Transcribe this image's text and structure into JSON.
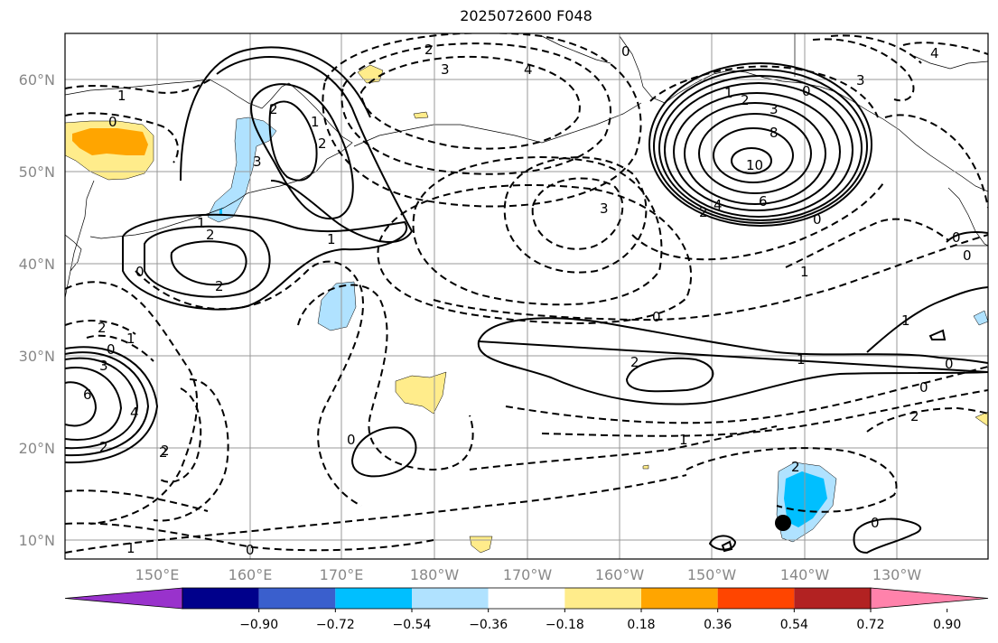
{
  "title": "2025072600 F048",
  "lon_labels": [
    "150°E",
    "160°E",
    "170°E",
    "180°W",
    "170°W",
    "160°W",
    "150°W",
    "140°W",
    "130°W"
  ],
  "lat_labels": [
    "60°N",
    "50°N",
    "40°N",
    "30°N",
    "20°N",
    "10°N"
  ],
  "colorbar": {
    "colors": [
      "#9932CC",
      "#00008B",
      "#3A5FCD",
      "#00BFFF",
      "#B0E2FF",
      "#FFFFFF",
      "#FFEC8B",
      "#FFA500",
      "#FF4500",
      "#B22222",
      "#FF82AB"
    ],
    "tick_labels": [
      "−0.90",
      "−0.72",
      "−0.54",
      "−0.36",
      "−0.18",
      "0.18",
      "0.36",
      "0.54",
      "0.72",
      "0.90"
    ]
  },
  "contour_labels": [
    {
      "name": "label-1-nw",
      "text": "1"
    },
    {
      "name": "label-0-nw",
      "text": "0"
    },
    {
      "name": "label-2-kam",
      "text": "2"
    },
    {
      "name": "label-3-kam",
      "text": "3"
    },
    {
      "name": "label-1-kam",
      "text": "1"
    },
    {
      "name": "label-2-kam2",
      "text": "2"
    },
    {
      "name": "label-1-jp",
      "text": "1"
    },
    {
      "name": "label-2-jp-a",
      "text": "2"
    },
    {
      "name": "label-2-jp-b",
      "text": "2"
    },
    {
      "name": "label-1-jp2",
      "text": "1"
    },
    {
      "name": "label-0-jp",
      "text": "0"
    },
    {
      "name": "label-2-west",
      "text": "2"
    },
    {
      "name": "label-1-west",
      "text": "1"
    },
    {
      "name": "label-0-west",
      "text": "0"
    },
    {
      "name": "label-3-west",
      "text": "3"
    },
    {
      "name": "label-6-west",
      "text": "6"
    },
    {
      "name": "label-4-west",
      "text": "4"
    },
    {
      "name": "label-2-west2",
      "text": "2"
    },
    {
      "name": "label-2-west3",
      "text": "2"
    },
    {
      "name": "label-3-bering",
      "text": "3"
    },
    {
      "name": "label-4-bering",
      "text": "4"
    },
    {
      "name": "label-2-bering",
      "text": "2"
    },
    {
      "name": "label-0-ak",
      "text": "0"
    },
    {
      "name": "label-3-mid",
      "text": "3"
    },
    {
      "name": "label-1-h",
      "text": "1"
    },
    {
      "name": "label-2-h",
      "text": "2"
    },
    {
      "name": "label-3-h",
      "text": "3"
    },
    {
      "name": "label-8-h",
      "text": "8"
    },
    {
      "name": "label-10-h",
      "text": "10"
    },
    {
      "name": "label-6-h",
      "text": "6"
    },
    {
      "name": "label-4-h",
      "text": "4"
    },
    {
      "name": "label-2-h2",
      "text": "2"
    },
    {
      "name": "label-0-h",
      "text": "0"
    },
    {
      "name": "label-0-ak2",
      "text": "0"
    },
    {
      "name": "label-3-ak",
      "text": "3"
    },
    {
      "name": "label-4-ne",
      "text": "4"
    },
    {
      "name": "label-1-e",
      "text": "1"
    },
    {
      "name": "label-0-mid",
      "text": "0"
    },
    {
      "name": "label-2-mid",
      "text": "2"
    },
    {
      "name": "label-1-mid",
      "text": "1"
    },
    {
      "name": "label-0-e",
      "text": "0"
    },
    {
      "name": "label-0-e2",
      "text": "0"
    },
    {
      "name": "label-2-e",
      "text": "2"
    },
    {
      "name": "label-1-e2",
      "text": "1"
    },
    {
      "name": "label-0-sw",
      "text": "0"
    },
    {
      "name": "label-1-s",
      "text": "1"
    },
    {
      "name": "label-0-s",
      "text": "0"
    },
    {
      "name": "label-2-sw",
      "text": "2"
    },
    {
      "name": "label-1-sm",
      "text": "1"
    },
    {
      "name": "label-2-se",
      "text": "2"
    },
    {
      "name": "label-0-se",
      "text": "0"
    },
    {
      "name": "label-0-w",
      "text": "0"
    },
    {
      "name": "label-0-ca",
      "text": "0"
    }
  ]
}
